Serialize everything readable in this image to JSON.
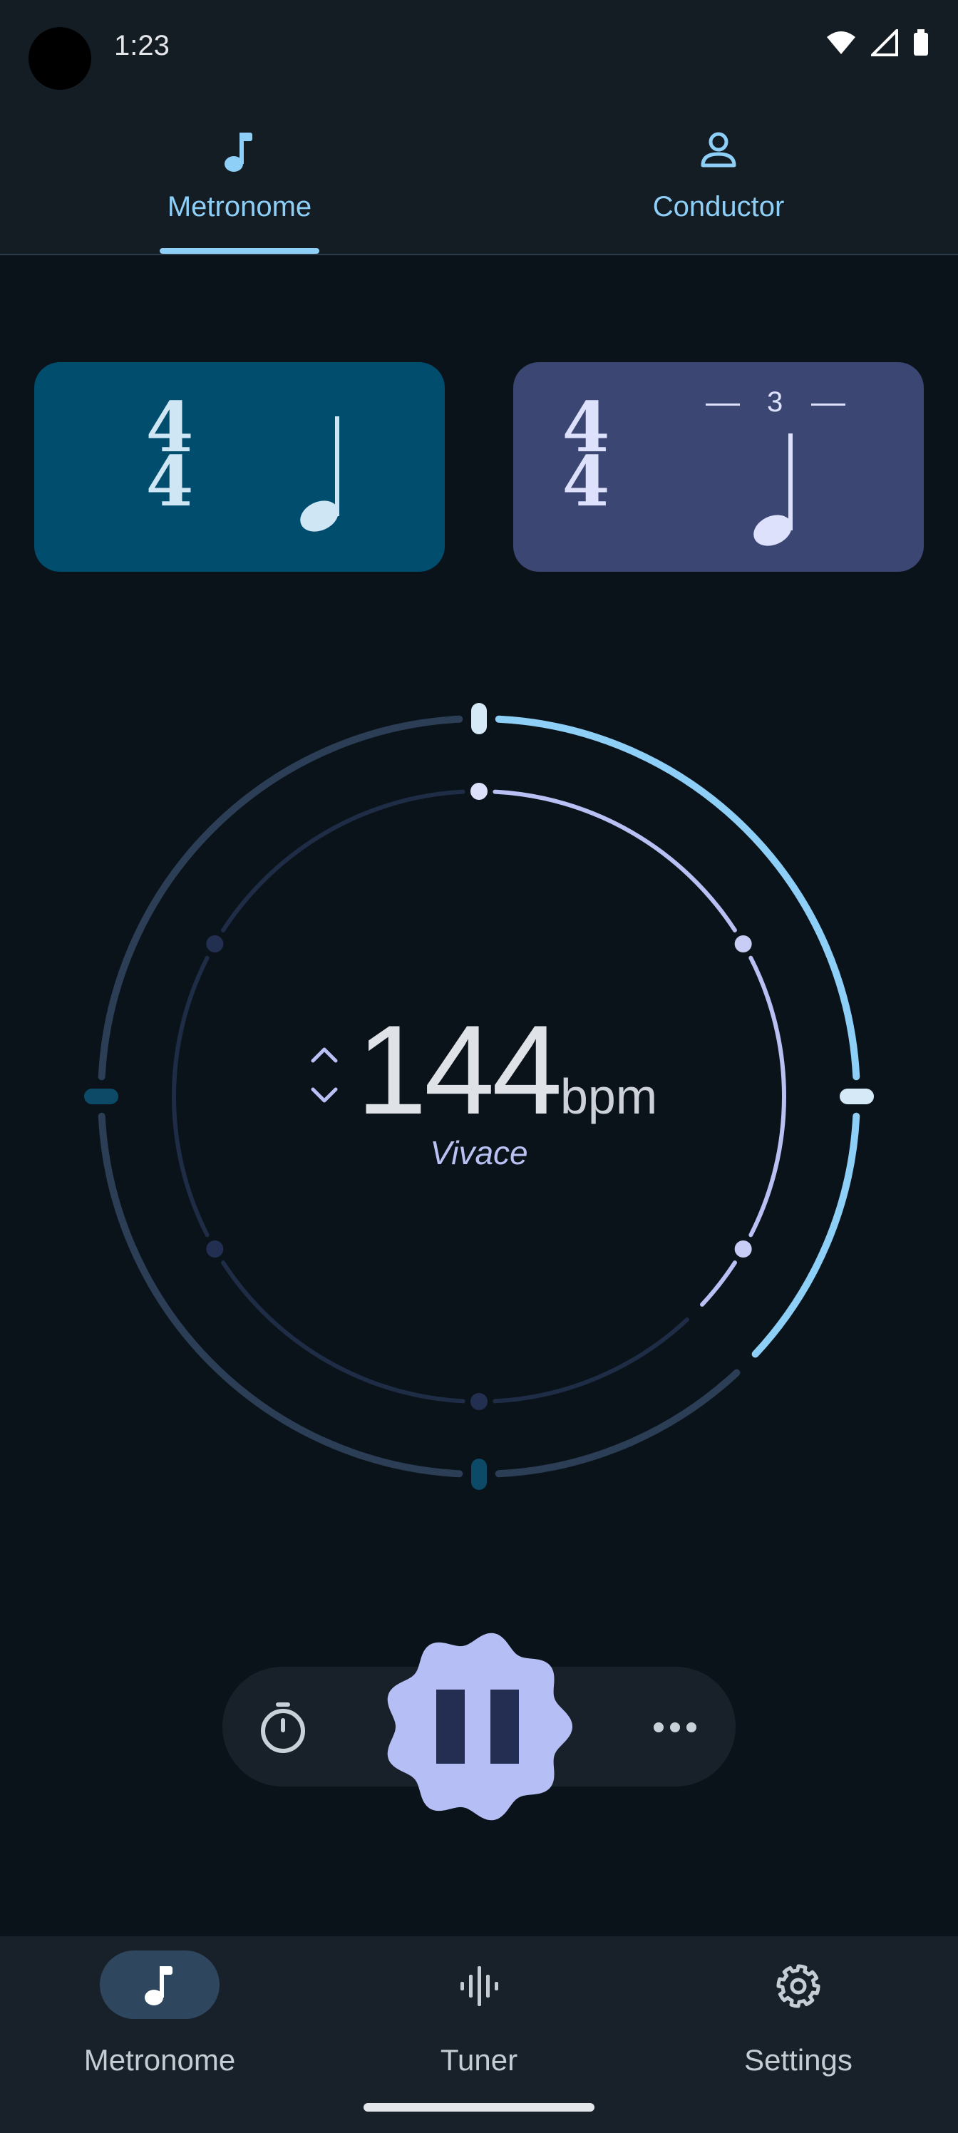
{
  "status": {
    "time": "1:23"
  },
  "tabs": [
    {
      "label": "Metronome",
      "icon": "music-note-icon",
      "selected": true
    },
    {
      "label": "Conductor",
      "icon": "person-icon",
      "selected": false
    }
  ],
  "cards": [
    {
      "numerator": "4",
      "denominator": "4",
      "note": "quarter-note-icon"
    },
    {
      "numerator": "4",
      "denominator": "4",
      "note": "quarter-note-icon",
      "tuplet": "3"
    }
  ],
  "dial": {
    "beat_progress": 0.375
  },
  "tempo": {
    "value": "144",
    "unit": "bpm",
    "name": "Vivace"
  },
  "controls": {
    "timer_icon": "timer-icon",
    "play_state_icon": "pause-icon",
    "more_icon": "more-horiz-icon"
  },
  "bottom_nav": [
    {
      "label": "Metronome",
      "icon": "music-note-icon",
      "selected": true
    },
    {
      "label": "Tuner",
      "icon": "waveform-icon",
      "selected": false
    },
    {
      "label": "Settings",
      "icon": "gear-icon",
      "selected": false
    }
  ],
  "colors": {
    "background": "#0a131a",
    "accent_blue": "#8ecff8",
    "accent_lavender": "#b8c0f4",
    "play_button": "#b5bff5"
  }
}
